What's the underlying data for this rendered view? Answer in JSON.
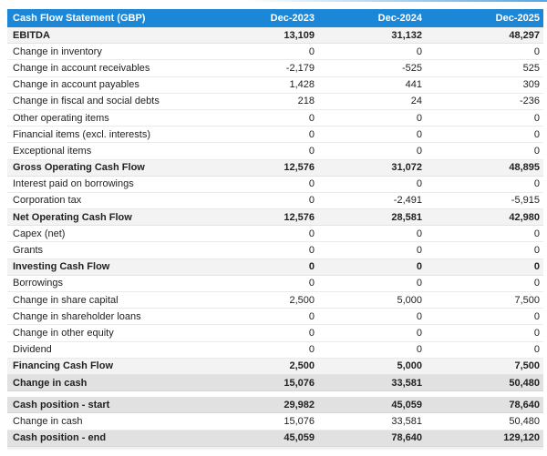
{
  "table": {
    "title": "Cash Flow Statement (GBP)",
    "columns": [
      "Dec-2023",
      "Dec-2024",
      "Dec-2025"
    ],
    "rows": [
      {
        "label": "EBITDA",
        "values": [
          "13,109",
          "31,132",
          "48,297"
        ],
        "style": "subtotal"
      },
      {
        "label": "Change in inventory",
        "values": [
          "0",
          "0",
          "0"
        ],
        "style": "normal"
      },
      {
        "label": "Change in account receivables",
        "values": [
          "-2,179",
          "-525",
          "525"
        ],
        "style": "normal"
      },
      {
        "label": "Change in account payables",
        "values": [
          "1,428",
          "441",
          "309"
        ],
        "style": "normal"
      },
      {
        "label": "Change in fiscal and social debts",
        "values": [
          "218",
          "24",
          "-236"
        ],
        "style": "normal"
      },
      {
        "label": "Other operating items",
        "values": [
          "0",
          "0",
          "0"
        ],
        "style": "normal"
      },
      {
        "label": "Financial items (excl. interests)",
        "values": [
          "0",
          "0",
          "0"
        ],
        "style": "normal"
      },
      {
        "label": "Exceptional items",
        "values": [
          "0",
          "0",
          "0"
        ],
        "style": "normal"
      },
      {
        "label": "Gross Operating Cash Flow",
        "values": [
          "12,576",
          "31,072",
          "48,895"
        ],
        "style": "subtotal"
      },
      {
        "label": "Interest paid on borrowings",
        "values": [
          "0",
          "0",
          "0"
        ],
        "style": "normal"
      },
      {
        "label": "Corporation tax",
        "values": [
          "0",
          "-2,491",
          "-5,915"
        ],
        "style": "normal"
      },
      {
        "label": "Net Operating Cash Flow",
        "values": [
          "12,576",
          "28,581",
          "42,980"
        ],
        "style": "subtotal"
      },
      {
        "label": "Capex (net)",
        "values": [
          "0",
          "0",
          "0"
        ],
        "style": "normal"
      },
      {
        "label": "Grants",
        "values": [
          "0",
          "0",
          "0"
        ],
        "style": "normal"
      },
      {
        "label": "Investing Cash Flow",
        "values": [
          "0",
          "0",
          "0"
        ],
        "style": "subtotal"
      },
      {
        "label": "Borrowings",
        "values": [
          "0",
          "0",
          "0"
        ],
        "style": "normal"
      },
      {
        "label": "Change in share capital",
        "values": [
          "2,500",
          "5,000",
          "7,500"
        ],
        "style": "normal"
      },
      {
        "label": "Change in shareholder loans",
        "values": [
          "0",
          "0",
          "0"
        ],
        "style": "normal"
      },
      {
        "label": "Change in other equity",
        "values": [
          "0",
          "0",
          "0"
        ],
        "style": "normal"
      },
      {
        "label": "Dividend",
        "values": [
          "0",
          "0",
          "0"
        ],
        "style": "normal"
      },
      {
        "label": "Financing Cash Flow",
        "values": [
          "2,500",
          "5,000",
          "7,500"
        ],
        "style": "subtotal"
      },
      {
        "label": "Change in cash",
        "values": [
          "15,076",
          "33,581",
          "50,480"
        ],
        "style": "strong"
      },
      {
        "label": "",
        "values": [
          "",
          "",
          ""
        ],
        "style": "spacer"
      },
      {
        "label": "Cash position - start",
        "values": [
          "29,982",
          "45,059",
          "78,640"
        ],
        "style": "strong"
      },
      {
        "label": "Change in cash",
        "values": [
          "15,076",
          "33,581",
          "50,480"
        ],
        "style": "normal"
      },
      {
        "label": "Cash position - end",
        "values": [
          "45,059",
          "78,640",
          "129,120"
        ],
        "style": "strong"
      }
    ]
  },
  "chart_data": {
    "type": "table",
    "title": "Cash Flow Statement (GBP)",
    "categories": [
      "Dec-2023",
      "Dec-2024",
      "Dec-2025"
    ],
    "series": [
      {
        "name": "EBITDA",
        "values": [
          13109,
          31132,
          48297
        ]
      },
      {
        "name": "Change in inventory",
        "values": [
          0,
          0,
          0
        ]
      },
      {
        "name": "Change in account receivables",
        "values": [
          -2179,
          -525,
          525
        ]
      },
      {
        "name": "Change in account payables",
        "values": [
          1428,
          441,
          309
        ]
      },
      {
        "name": "Change in fiscal and social debts",
        "values": [
          218,
          24,
          -236
        ]
      },
      {
        "name": "Other operating items",
        "values": [
          0,
          0,
          0
        ]
      },
      {
        "name": "Financial items (excl. interests)",
        "values": [
          0,
          0,
          0
        ]
      },
      {
        "name": "Exceptional items",
        "values": [
          0,
          0,
          0
        ]
      },
      {
        "name": "Gross Operating Cash Flow",
        "values": [
          12576,
          31072,
          48895
        ]
      },
      {
        "name": "Interest paid on borrowings",
        "values": [
          0,
          0,
          0
        ]
      },
      {
        "name": "Corporation tax",
        "values": [
          0,
          -2491,
          -5915
        ]
      },
      {
        "name": "Net Operating Cash Flow",
        "values": [
          12576,
          28581,
          42980
        ]
      },
      {
        "name": "Capex (net)",
        "values": [
          0,
          0,
          0
        ]
      },
      {
        "name": "Grants",
        "values": [
          0,
          0,
          0
        ]
      },
      {
        "name": "Investing Cash Flow",
        "values": [
          0,
          0,
          0
        ]
      },
      {
        "name": "Borrowings",
        "values": [
          0,
          0,
          0
        ]
      },
      {
        "name": "Change in share capital",
        "values": [
          2500,
          5000,
          7500
        ]
      },
      {
        "name": "Change in shareholder loans",
        "values": [
          0,
          0,
          0
        ]
      },
      {
        "name": "Change in other equity",
        "values": [
          0,
          0,
          0
        ]
      },
      {
        "name": "Dividend",
        "values": [
          0,
          0,
          0
        ]
      },
      {
        "name": "Financing Cash Flow",
        "values": [
          2500,
          5000,
          7500
        ]
      },
      {
        "name": "Change in cash",
        "values": [
          15076,
          33581,
          50480
        ]
      },
      {
        "name": "Cash position - start",
        "values": [
          29982,
          45059,
          78640
        ]
      },
      {
        "name": "Change in cash (recap)",
        "values": [
          15076,
          33581,
          50480
        ]
      },
      {
        "name": "Cash position - end",
        "values": [
          45059,
          78640,
          129120
        ]
      }
    ]
  },
  "colors": {
    "header_bg": "#1d87d7",
    "header_text": "#ffffff",
    "subtotal_bg": "#f3f3f3",
    "strong_bg": "#e1e1e1",
    "row_border": "#ebebeb",
    "text": "#222222"
  }
}
